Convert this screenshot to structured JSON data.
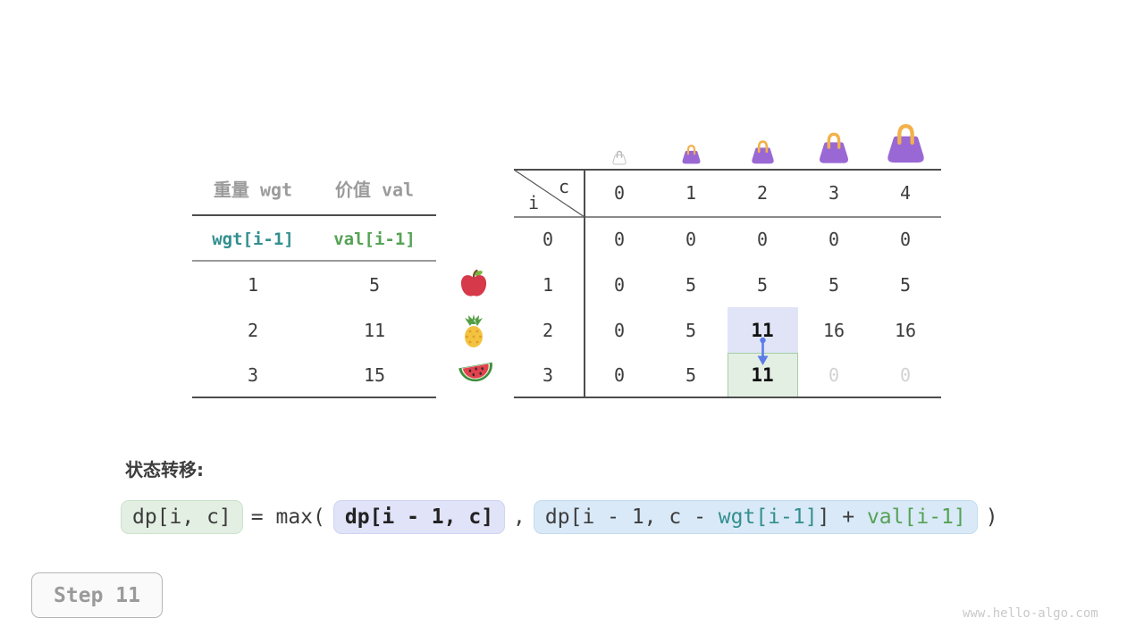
{
  "colors": {
    "teal": "#338f8f",
    "green": "#55a255",
    "gray_header": "#9b9b9b",
    "faint_text": "#d2d2d2",
    "bag_purple": "#9a68d4",
    "bag_handle": "#f2b14b",
    "bag_outline": "#b9b9b9",
    "arrow_blue": "#5b7ce8",
    "highlight_blue_bg": "#e0e4f6",
    "highlight_green_bg": "#e4efe4",
    "highlight_green_border": "#a4cda4",
    "formula_blue_bg": "#d9e9f7"
  },
  "left_table": {
    "headers": {
      "weight": "重量 wgt",
      "value": "价值 val"
    },
    "index_row": {
      "weight": "wgt[i-1]",
      "value": "val[i-1]"
    },
    "rows": [
      {
        "weight": "1",
        "value": "5",
        "fruit": "apple"
      },
      {
        "weight": "2",
        "value": "11",
        "fruit": "pineapple"
      },
      {
        "weight": "3",
        "value": "15",
        "fruit": "watermelon"
      }
    ]
  },
  "dp_table": {
    "corner": {
      "row_axis": "i",
      "col_axis": "c"
    },
    "col_headers": [
      "0",
      "1",
      "2",
      "3",
      "4"
    ],
    "row_headers": [
      "0",
      "1",
      "2",
      "3"
    ],
    "cells": [
      [
        "0",
        "0",
        "0",
        "0",
        "0"
      ],
      [
        "0",
        "5",
        "5",
        "5",
        "5"
      ],
      [
        "0",
        "5",
        "11",
        "16",
        "16"
      ],
      [
        "0",
        "5",
        "11",
        "0",
        "0"
      ]
    ],
    "bold_cells": [
      [
        2,
        2
      ],
      [
        3,
        2
      ]
    ],
    "faint_cells": [
      [
        3,
        3
      ],
      [
        3,
        4
      ]
    ],
    "highlight_source": [
      2,
      2
    ],
    "highlight_target": [
      3,
      2
    ],
    "bags": [
      {
        "capacity": "0",
        "size": 17,
        "variant": "empty"
      },
      {
        "capacity": "1",
        "size": 24,
        "variant": "filled"
      },
      {
        "capacity": "2",
        "size": 29,
        "variant": "filled"
      },
      {
        "capacity": "3",
        "size": 38,
        "variant": "filled"
      },
      {
        "capacity": "4",
        "size": 48,
        "variant": "filled"
      }
    ]
  },
  "formula": {
    "label": "状态转移:",
    "lhs": "dp[i, c]",
    "operator": "= max(",
    "arg1": "dp[i - 1, c]",
    "separator": ",",
    "arg2_parts": [
      {
        "text": "dp[i - 1, c - ",
        "color": "dark"
      },
      {
        "text": "wgt[i-1]",
        "color": "teal"
      },
      {
        "text": "] + ",
        "color": "dark"
      },
      {
        "text": "val[i-1]",
        "color": "green"
      }
    ],
    "closing": ")"
  },
  "step_badge": {
    "label": "Step 11"
  },
  "watermark": "www.hello-algo.com"
}
